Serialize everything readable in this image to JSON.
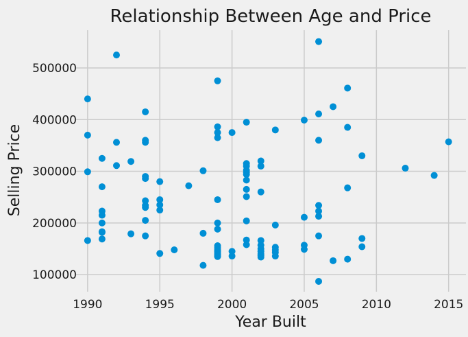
{
  "chart_data": {
    "type": "scatter",
    "title": "Relationship Between Age and Price",
    "xlabel": "Year Built",
    "ylabel": "Selling Price",
    "xlim": [
      1989.2,
      2016.2
    ],
    "ylim": [
      67000,
      573000
    ],
    "xticks": [
      1990,
      1995,
      2000,
      2005,
      2010,
      2015
    ],
    "yticks": [
      100000,
      200000,
      300000,
      400000,
      500000
    ],
    "grid": true,
    "colors": {
      "background": "#f0f0f0",
      "grid": "#cbcbcb",
      "point": "#008fd5",
      "text": "#1a1a1a"
    },
    "x": [
      1990,
      1990,
      1990,
      1990,
      1991,
      1991,
      1991,
      1991,
      1991,
      1991,
      1991,
      1991,
      1992,
      1992,
      1992,
      1993,
      1993,
      1994,
      1994,
      1994,
      1994,
      1994,
      1994,
      1994,
      1994,
      1994,
      1994,
      1995,
      1995,
      1995,
      1995,
      1995,
      1996,
      1997,
      1998,
      1998,
      1998,
      1999,
      1999,
      1999,
      1999,
      1999,
      1999,
      1999,
      1999,
      1999,
      1999,
      1999,
      1999,
      1999,
      1999,
      1999,
      2000,
      2000,
      2000,
      2001,
      2001,
      2001,
      2001,
      2001,
      2001,
      2001,
      2001,
      2001,
      2001,
      2001,
      2001,
      2002,
      2002,
      2002,
      2002,
      2002,
      2002,
      2002,
      2002,
      2002,
      2002,
      2003,
      2003,
      2003,
      2003,
      2003,
      2003,
      2005,
      2005,
      2005,
      2005,
      2006,
      2006,
      2006,
      2006,
      2006,
      2006,
      2006,
      2006,
      2007,
      2007,
      2008,
      2008,
      2008,
      2008,
      2009,
      2009,
      2009,
      2012,
      2014,
      2015
    ],
    "y": [
      440000,
      370000,
      299000,
      166000,
      325000,
      270000,
      223000,
      215000,
      200000,
      183000,
      169000,
      182000,
      525000,
      356000,
      311000,
      319000,
      179000,
      415000,
      360000,
      356000,
      290000,
      286000,
      243000,
      234000,
      230000,
      205000,
      175000,
      280000,
      245000,
      235000,
      225000,
      141000,
      148000,
      272000,
      301000,
      180000,
      118000,
      475000,
      386000,
      375000,
      365000,
      245000,
      200000,
      188000,
      156000,
      152000,
      148000,
      145000,
      142000,
      139000,
      136000,
      135000,
      375000,
      145000,
      136000,
      395000,
      315000,
      310000,
      302000,
      298000,
      294000,
      283000,
      265000,
      251000,
      204000,
      167000,
      158000,
      320000,
      310000,
      260000,
      166000,
      157000,
      150000,
      145000,
      140000,
      137000,
      134000,
      380000,
      196000,
      153000,
      148000,
      143000,
      136000,
      399000,
      211000,
      157000,
      149000,
      551000,
      411000,
      360000,
      234000,
      223000,
      213000,
      175000,
      87000,
      425000,
      127000,
      461000,
      385000,
      268000,
      130000,
      330000,
      170000,
      154000,
      306000,
      292000,
      357000
    ]
  }
}
